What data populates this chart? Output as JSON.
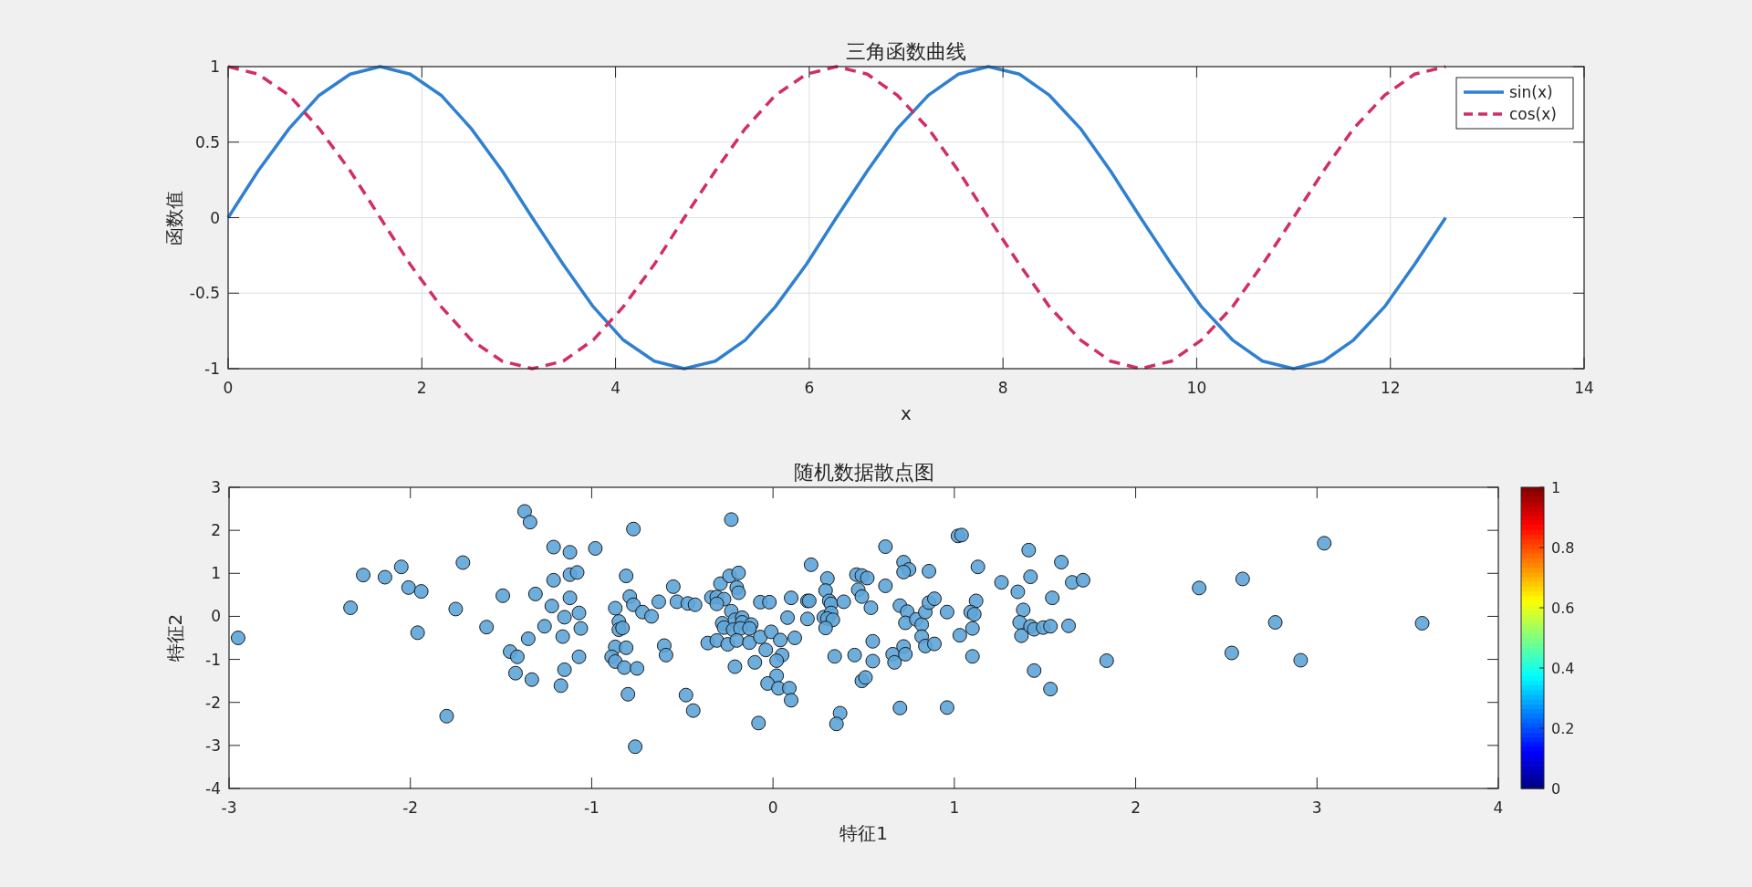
{
  "chart_data": [
    {
      "type": "line",
      "title": "三角函数曲线",
      "xlabel": "x",
      "ylabel": "函数值",
      "x": [
        0,
        0.31,
        0.63,
        0.94,
        1.26,
        1.57,
        1.88,
        2.2,
        2.51,
        2.83,
        3.14,
        3.46,
        3.77,
        4.08,
        4.4,
        4.71,
        5.03,
        5.34,
        5.65,
        5.97,
        6.28,
        6.6,
        6.91,
        7.23,
        7.54,
        7.85,
        8.17,
        8.48,
        8.8,
        9.11,
        9.42,
        9.74,
        10.05,
        10.37,
        10.68,
        11,
        11.31,
        11.62,
        11.94,
        12.25,
        12.57
      ],
      "series": [
        {
          "name": "sin(x)",
          "color": "#2f80d1",
          "line_style": "solid",
          "values": [
            0,
            0.31,
            0.59,
            0.81,
            0.95,
            1,
            0.95,
            0.81,
            0.59,
            0.31,
            0,
            -0.31,
            -0.59,
            -0.81,
            -0.95,
            -1,
            -0.95,
            -0.81,
            -0.59,
            -0.31,
            0,
            0.31,
            0.59,
            0.81,
            0.95,
            1,
            0.95,
            0.81,
            0.59,
            0.31,
            0,
            -0.31,
            -0.59,
            -0.81,
            -0.95,
            -1,
            -0.95,
            -0.81,
            -0.59,
            -0.31,
            0
          ]
        },
        {
          "name": "cos(x)",
          "color": "#d12e66",
          "line_style": "dashed",
          "values": [
            1,
            0.95,
            0.81,
            0.59,
            0.31,
            0,
            -0.31,
            -0.59,
            -0.81,
            -0.95,
            -1,
            -0.95,
            -0.81,
            -0.59,
            -0.31,
            0,
            0.31,
            0.59,
            0.81,
            0.95,
            1,
            0.95,
            0.81,
            0.59,
            0.31,
            0,
            -0.31,
            -0.59,
            -0.81,
            -0.95,
            -1,
            -0.95,
            -0.81,
            -0.59,
            -0.31,
            0,
            0.31,
            0.59,
            0.81,
            0.95,
            1
          ]
        }
      ],
      "xlim": [
        0,
        14
      ],
      "xticks": [
        0,
        2,
        4,
        6,
        8,
        10,
        12,
        14
      ],
      "ylim": [
        -1,
        1
      ],
      "yticks": [
        -1,
        -0.5,
        0,
        0.5,
        1
      ],
      "grid": true,
      "legend": "top right",
      "marker": "none"
    },
    {
      "type": "scatter",
      "title": "随机数据散点图",
      "xlabel": "特征1",
      "ylabel": "特征2",
      "series": [
        {
          "color": "#5ea5d8",
          "x": [
            -2.95,
            -2.33,
            -2.26,
            -2.14,
            -2.05,
            -2.01,
            -1.94,
            -1.96,
            -1.8,
            -1.75,
            -1.71,
            -1.58,
            -1.49,
            -1.45,
            -1.41,
            -1.42,
            -1.35,
            -1.33,
            -1.37,
            -1.34,
            -1.31,
            -1.26,
            -1.22,
            -1.21,
            -1.21,
            -1.12,
            -1.12,
            -1.08,
            -1.12,
            -1.15,
            -1.07,
            -1.06,
            -1.16,
            -1.07,
            -1.15,
            -1.17,
            -0.98,
            -0.87,
            -0.85,
            -0.85,
            -0.83,
            -0.87,
            -0.81,
            -0.89,
            -0.87,
            -0.82,
            -0.75,
            -0.8,
            -0.76,
            -0.77,
            -0.81,
            -0.79,
            -0.77,
            -0.72,
            -0.67,
            -0.63,
            -0.55,
            -0.53,
            -0.47,
            -0.43,
            -0.6,
            -0.59,
            -0.48,
            -0.44,
            -0.23,
            -0.34,
            -0.31,
            -0.27,
            -0.31,
            -0.29,
            -0.24,
            -0.19,
            -0.2,
            -0.19,
            -0.23,
            -0.28,
            -0.27,
            -0.21,
            -0.17,
            -0.17,
            -0.12,
            -0.22,
            -0.18,
            -0.13,
            -0.36,
            -0.31,
            -0.25,
            -0.2,
            -0.13,
            -0.07,
            -0.01,
            0.04,
            -0.04,
            0.05,
            0.02,
            -0.1,
            -0.21,
            0.02,
            -0.03,
            0.03,
            0.09,
            0.1,
            -0.08,
            -0.07,
            -0.02,
            0.08,
            0.1,
            0.12,
            0.19,
            0.2,
            0.19,
            0.21,
            0.3,
            0.29,
            0.31,
            0.32,
            0.39,
            0.28,
            0.32,
            0.3,
            0.33,
            0.29,
            0.34,
            0.37,
            0.35,
            0.45,
            0.55,
            0.55,
            0.49,
            0.51,
            0.46,
            0.49,
            0.52,
            0.47,
            0.49,
            0.54,
            0.62,
            0.62,
            0.72,
            0.75,
            0.72,
            0.86,
            0.7,
            0.74,
            0.73,
            0.79,
            0.82,
            0.84,
            0.86,
            0.89,
            0.82,
            0.84,
            0.89,
            0.96,
            0.66,
            0.67,
            0.72,
            0.73,
            0.7,
            0.96,
            1.02,
            1.04,
            1.13,
            1.03,
            1.1,
            1.12,
            1.09,
            1.11,
            1.1,
            1.26,
            1.35,
            1.41,
            1.42,
            1.38,
            1.36,
            1.37,
            1.42,
            1.44,
            1.49,
            1.53,
            1.54,
            1.44,
            1.53,
            1.59,
            1.63,
            1.65,
            1.71,
            1.84,
            2.35,
            2.59,
            2.53,
            2.77,
            2.91,
            3.04,
            3.58
          ],
          "values": [
            -0.5,
            0.2,
            0.96,
            0.91,
            1.15,
            0.67,
            0.58,
            -0.38,
            -2.32,
            0.17,
            1.25,
            -0.25,
            0.48,
            -0.82,
            -0.94,
            -1.32,
            -0.52,
            -1.47,
            2.44,
            2.19,
            0.52,
            -0.23,
            0.24,
            0.84,
            1.61,
            1.49,
            0.97,
            1.02,
            0.43,
            -0.02,
            0.08,
            -0.28,
            -0.47,
            -0.94,
            -1.24,
            -1.61,
            1.58,
            0.19,
            -0.12,
            -0.31,
            -0.27,
            -0.71,
            -0.73,
            -0.94,
            -1.05,
            -1.19,
            -1.21,
            -1.81,
            -3.03,
            2.03,
            0.94,
            0.46,
            0.27,
            0.1,
            0,
            0.34,
            0.69,
            0.34,
            0.3,
            0.27,
            -0.68,
            -0.9,
            -1.83,
            -2.19,
            2.25,
            0.44,
            0.45,
            0.4,
            0.29,
            0.76,
            0.94,
            1.01,
            0.67,
            0.55,
            0.12,
            -0.16,
            -0.26,
            -0.08,
            -0.03,
            -0.14,
            -0.19,
            -0.31,
            -0.28,
            -0.28,
            -0.62,
            -0.56,
            -0.65,
            -0.56,
            -0.61,
            -0.48,
            -0.36,
            -0.55,
            -0.78,
            -0.9,
            -1.03,
            -1.07,
            -1.17,
            -1.38,
            -1.56,
            -1.67,
            -1.67,
            -1.95,
            -2.48,
            0.33,
            0.33,
            -0.03,
            0.43,
            -0.5,
            0.36,
            0.36,
            -0.06,
            1.2,
            0.88,
            0.6,
            0.36,
            0.29,
            0.34,
            -0.02,
            0.08,
            -0.05,
            -0.08,
            -0.27,
            -0.93,
            -2.25,
            -2.5,
            -0.9,
            -0.58,
            -1.04,
            -1.5,
            -1.42,
            0.97,
            0.95,
            0.89,
            0.62,
            0.46,
            0.2,
            1.62,
            0.71,
            1.26,
            1.09,
            1.03,
            1.05,
            0.25,
            0.11,
            -0.15,
            -0.07,
            -0.19,
            0.1,
            0.32,
            0.41,
            -0.47,
            -0.69,
            -0.64,
            0.1,
            -0.88,
            -1.07,
            -0.7,
            -0.88,
            -2.13,
            -2.12,
            1.87,
            1.89,
            1.15,
            -0.44,
            -0.93,
            0.36,
            0.1,
            0.05,
            -0.28,
            0.79,
            0.57,
            1.54,
            0.92,
            0.15,
            -0.14,
            -0.45,
            -0.23,
            -0.3,
            -0.26,
            -0.23,
            0.43,
            -1.26,
            -1.69,
            1.26,
            -0.22,
            0.79,
            0.84,
            -1.03,
            0.66,
            0.87,
            -0.85,
            -0.14,
            -1.02,
            1.7,
            -0.16
          ]
        }
      ],
      "xlim": [
        -3,
        4
      ],
      "xticks": [
        -3,
        -2,
        -1,
        0,
        1,
        2,
        3,
        4
      ],
      "ylim": [
        -4,
        3
      ],
      "yticks": [
        -4,
        -3,
        -2,
        -1,
        0,
        1,
        2,
        3
      ],
      "marker": "circle",
      "clim": [
        0,
        1
      ],
      "cticks": [
        0,
        0.2,
        0.4,
        0.6,
        0.8,
        1
      ]
    }
  ]
}
